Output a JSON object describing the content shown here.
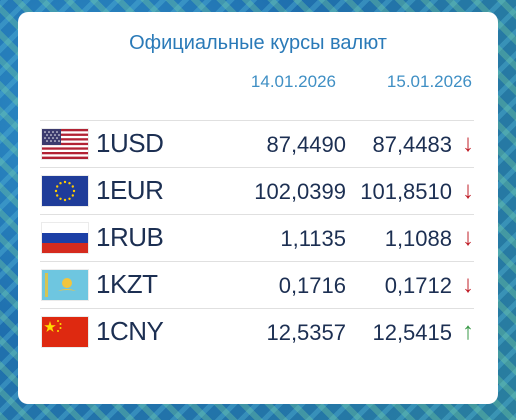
{
  "header": {
    "title": "Официальные курсы валют",
    "date_prev": "14.01.2026",
    "date_curr": "15.01.2026"
  },
  "colors": {
    "accent": "#2a7ab8",
    "down": "#c0202a",
    "up": "#3a9a48"
  },
  "rates": [
    {
      "currency": "1USD",
      "flag": "us-flag-icon",
      "prev": "87,4490",
      "curr": "87,4483",
      "trend": "↓",
      "direction": "down"
    },
    {
      "currency": "1EUR",
      "flag": "eu-flag-icon",
      "prev": "102,0399",
      "curr": "101,8510",
      "trend": "↓",
      "direction": "down"
    },
    {
      "currency": "1RUB",
      "flag": "ru-flag-icon",
      "prev": "1,1135",
      "curr": "1,1088",
      "trend": "↓",
      "direction": "down"
    },
    {
      "currency": "1KZT",
      "flag": "kz-flag-icon",
      "prev": "0,1716",
      "curr": "0,1712",
      "trend": "↓",
      "direction": "down"
    },
    {
      "currency": "1CNY",
      "flag": "cn-flag-icon",
      "prev": "12,5357",
      "curr": "12,5415",
      "trend": "↑",
      "direction": "up"
    }
  ]
}
